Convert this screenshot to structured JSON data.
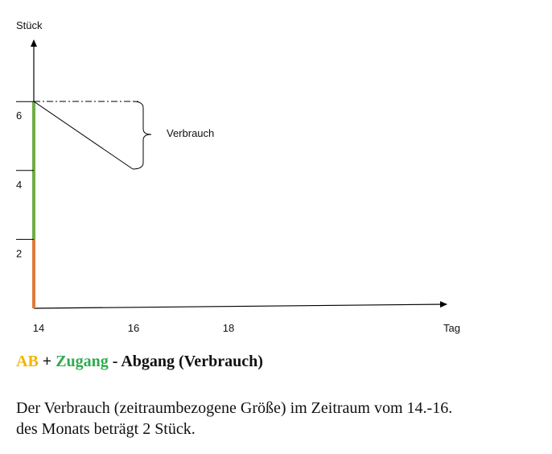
{
  "diagram": {
    "y_axis": {
      "label": "Stück",
      "ticks": [
        6,
        4,
        2
      ]
    },
    "x_axis": {
      "label": "Tag",
      "ticks": [
        14,
        16,
        18
      ]
    },
    "annotation": "Verbrauch"
  },
  "formula": {
    "parts": [
      "AB",
      "+",
      "Zugang",
      "- Abgang (Verbrauch)"
    ]
  },
  "paragraph": {
    "lines": [
      "Der Verbrauch (zeitraumbezogene Größe) im Zeitraum vom 14.-16.",
      "des Monats beträgt 2 Stück."
    ]
  }
}
